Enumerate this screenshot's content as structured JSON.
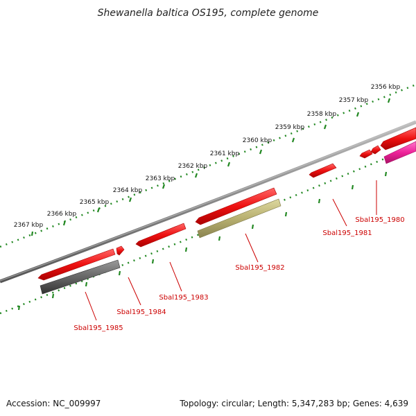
{
  "title": "Shewanella baltica OS195, complete genome",
  "footer": {
    "accession": "Accession: NC_009997",
    "summary": "Topology: circular; Length: 5,347,283 bp; Genes: 4,639"
  },
  "ticks": [
    "2356 kbp",
    "2357 kbp",
    "2358 kbp",
    "2359 kbp",
    "2360 kbp",
    "2361 kbp",
    "2362 kbp",
    "2363 kbp",
    "2364 kbp",
    "2365 kbp",
    "2366 kbp",
    "2367 kbp"
  ],
  "genes": [
    {
      "label": "Sbal195_1980"
    },
    {
      "label": "Sbal195_1981"
    },
    {
      "label": "Sbal195_1982"
    },
    {
      "label": "Sbal195_1983"
    },
    {
      "label": "Sbal195_1984"
    },
    {
      "label": "Sbal195_1985"
    }
  ],
  "colors": {
    "gene_red": "#ee1111",
    "gene_magenta": "#ee2299",
    "gene_olive": "#b8b070",
    "gene_gray": "#666666",
    "backbone": "#888888",
    "ruler": "#228822"
  }
}
